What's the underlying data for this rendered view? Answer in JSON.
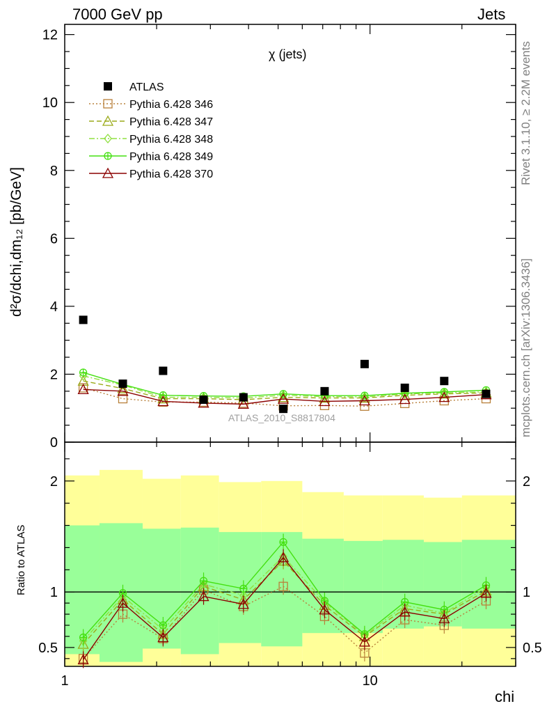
{
  "header": {
    "left": "7000 GeV pp",
    "right": "Jets"
  },
  "side_labels": {
    "rivet": "Rivet 3.1.10, ≥ 2.2M events",
    "mcplots": "mcplots.cern.ch [arXiv:1306.3436]"
  },
  "chart_data": {
    "type": "line",
    "title": "χ (jets)",
    "watermark": "ATLAS_2010_S8817804",
    "xlabel": "chi",
    "x_scale": "log",
    "xlim": [
      1,
      30
    ],
    "x_ticks": [
      "1",
      "10"
    ],
    "x": [
      1.15,
      1.55,
      2.1,
      2.85,
      3.85,
      5.2,
      7.1,
      9.6,
      13,
      17.5,
      24
    ],
    "top": {
      "ylabel": "d²σ/dchi,dm₁₂ [pb/GeV]",
      "ylim": [
        0,
        12.3
      ],
      "y_ticks": [
        "0",
        "2",
        "4",
        "6",
        "8",
        "10",
        "12"
      ],
      "data": {
        "name": "ATLAS",
        "values": [
          3.6,
          1.72,
          2.1,
          1.25,
          1.32,
          0.98,
          1.5,
          2.3,
          1.6,
          1.8,
          1.42
        ]
      },
      "series": [
        {
          "name": "Pythia 6.428 346",
          "color": "#b8803a",
          "marker": "square",
          "dash": "dotted",
          "values": [
            1.6,
            1.28,
            1.18,
            1.18,
            1.15,
            1.07,
            1.08,
            1.06,
            1.14,
            1.22,
            1.28
          ]
        },
        {
          "name": "Pythia 6.428 347",
          "color": "#9aaa18",
          "marker": "triangle",
          "dash": "dashed",
          "values": [
            1.8,
            1.58,
            1.28,
            1.28,
            1.25,
            1.32,
            1.3,
            1.3,
            1.38,
            1.42,
            1.45
          ]
        },
        {
          "name": "Pythia 6.428 348",
          "color": "#90e040",
          "marker": "diamond",
          "dash": "dashdot",
          "values": [
            1.95,
            1.68,
            1.32,
            1.32,
            1.3,
            1.38,
            1.34,
            1.33,
            1.42,
            1.45,
            1.48
          ]
        },
        {
          "name": "Pythia 6.428 349",
          "color": "#44e010",
          "marker": "circle-cross",
          "dash": "solid",
          "values": [
            2.05,
            1.7,
            1.38,
            1.36,
            1.35,
            1.42,
            1.37,
            1.37,
            1.44,
            1.48,
            1.53
          ]
        },
        {
          "name": "Pythia 6.428 370",
          "color": "#8b0000",
          "marker": "triangle",
          "dash": "solid",
          "values": [
            1.55,
            1.5,
            1.2,
            1.15,
            1.12,
            1.27,
            1.2,
            1.22,
            1.26,
            1.32,
            1.4
          ]
        }
      ]
    },
    "ratio": {
      "ylabel": "Ratio to ATLAS",
      "ylim": [
        0.33,
        2.35
      ],
      "y_ticks": [
        "0.5",
        "1",
        "2"
      ],
      "band_x_edges": [
        1,
        1.3,
        1.8,
        2.4,
        3.2,
        4.4,
        6,
        8.2,
        11,
        15,
        20,
        30
      ],
      "band_inner": [
        [
          0.44,
          1.6
        ],
        [
          0.37,
          1.62
        ],
        [
          0.49,
          1.57
        ],
        [
          0.44,
          1.58
        ],
        [
          0.54,
          1.54
        ],
        [
          0.51,
          1.54
        ],
        [
          0.63,
          1.48
        ],
        [
          0.63,
          1.46
        ],
        [
          0.67,
          1.47
        ],
        [
          0.69,
          1.45
        ],
        [
          0.67,
          1.47
        ]
      ],
      "band_outer": [
        [
          0.33,
          2.05
        ],
        [
          0.33,
          2.1
        ],
        [
          0.33,
          2.02
        ],
        [
          0.33,
          2.05
        ],
        [
          0.33,
          1.99
        ],
        [
          0.33,
          2.0
        ],
        [
          0.33,
          1.9
        ],
        [
          0.33,
          1.87
        ],
        [
          0.33,
          1.87
        ],
        [
          0.33,
          1.85
        ],
        [
          0.33,
          1.87
        ]
      ],
      "series": [
        {
          "name": "Pythia 6.428 346",
          "values": [
            0.4,
            0.8,
            0.58,
            1.02,
            0.87,
            1.05,
            0.78,
            0.45,
            0.75,
            0.7,
            0.92
          ]
        },
        {
          "name": "Pythia 6.428 347",
          "values": [
            0.53,
            0.93,
            0.62,
            1.05,
            0.93,
            1.28,
            0.88,
            0.6,
            0.85,
            0.8,
            1.01
          ]
        },
        {
          "name": "Pythia 6.428 348",
          "values": [
            0.56,
            0.96,
            0.66,
            1.07,
            0.97,
            1.32,
            0.91,
            0.61,
            0.88,
            0.81,
            1.04
          ]
        },
        {
          "name": "Pythia 6.428 349",
          "values": [
            0.59,
            0.99,
            0.7,
            1.1,
            1.03,
            1.45,
            0.92,
            0.62,
            0.91,
            0.84,
            1.06
          ]
        },
        {
          "name": "Pythia 6.428 370",
          "values": [
            0.39,
            0.9,
            0.59,
            0.96,
            0.89,
            1.31,
            0.84,
            0.55,
            0.82,
            0.76,
            0.99
          ]
        }
      ]
    },
    "legend_position": "top-left"
  },
  "colors": {
    "band_inner": "#99ff99",
    "band_outer": "#ffff99",
    "data": "#000000"
  }
}
